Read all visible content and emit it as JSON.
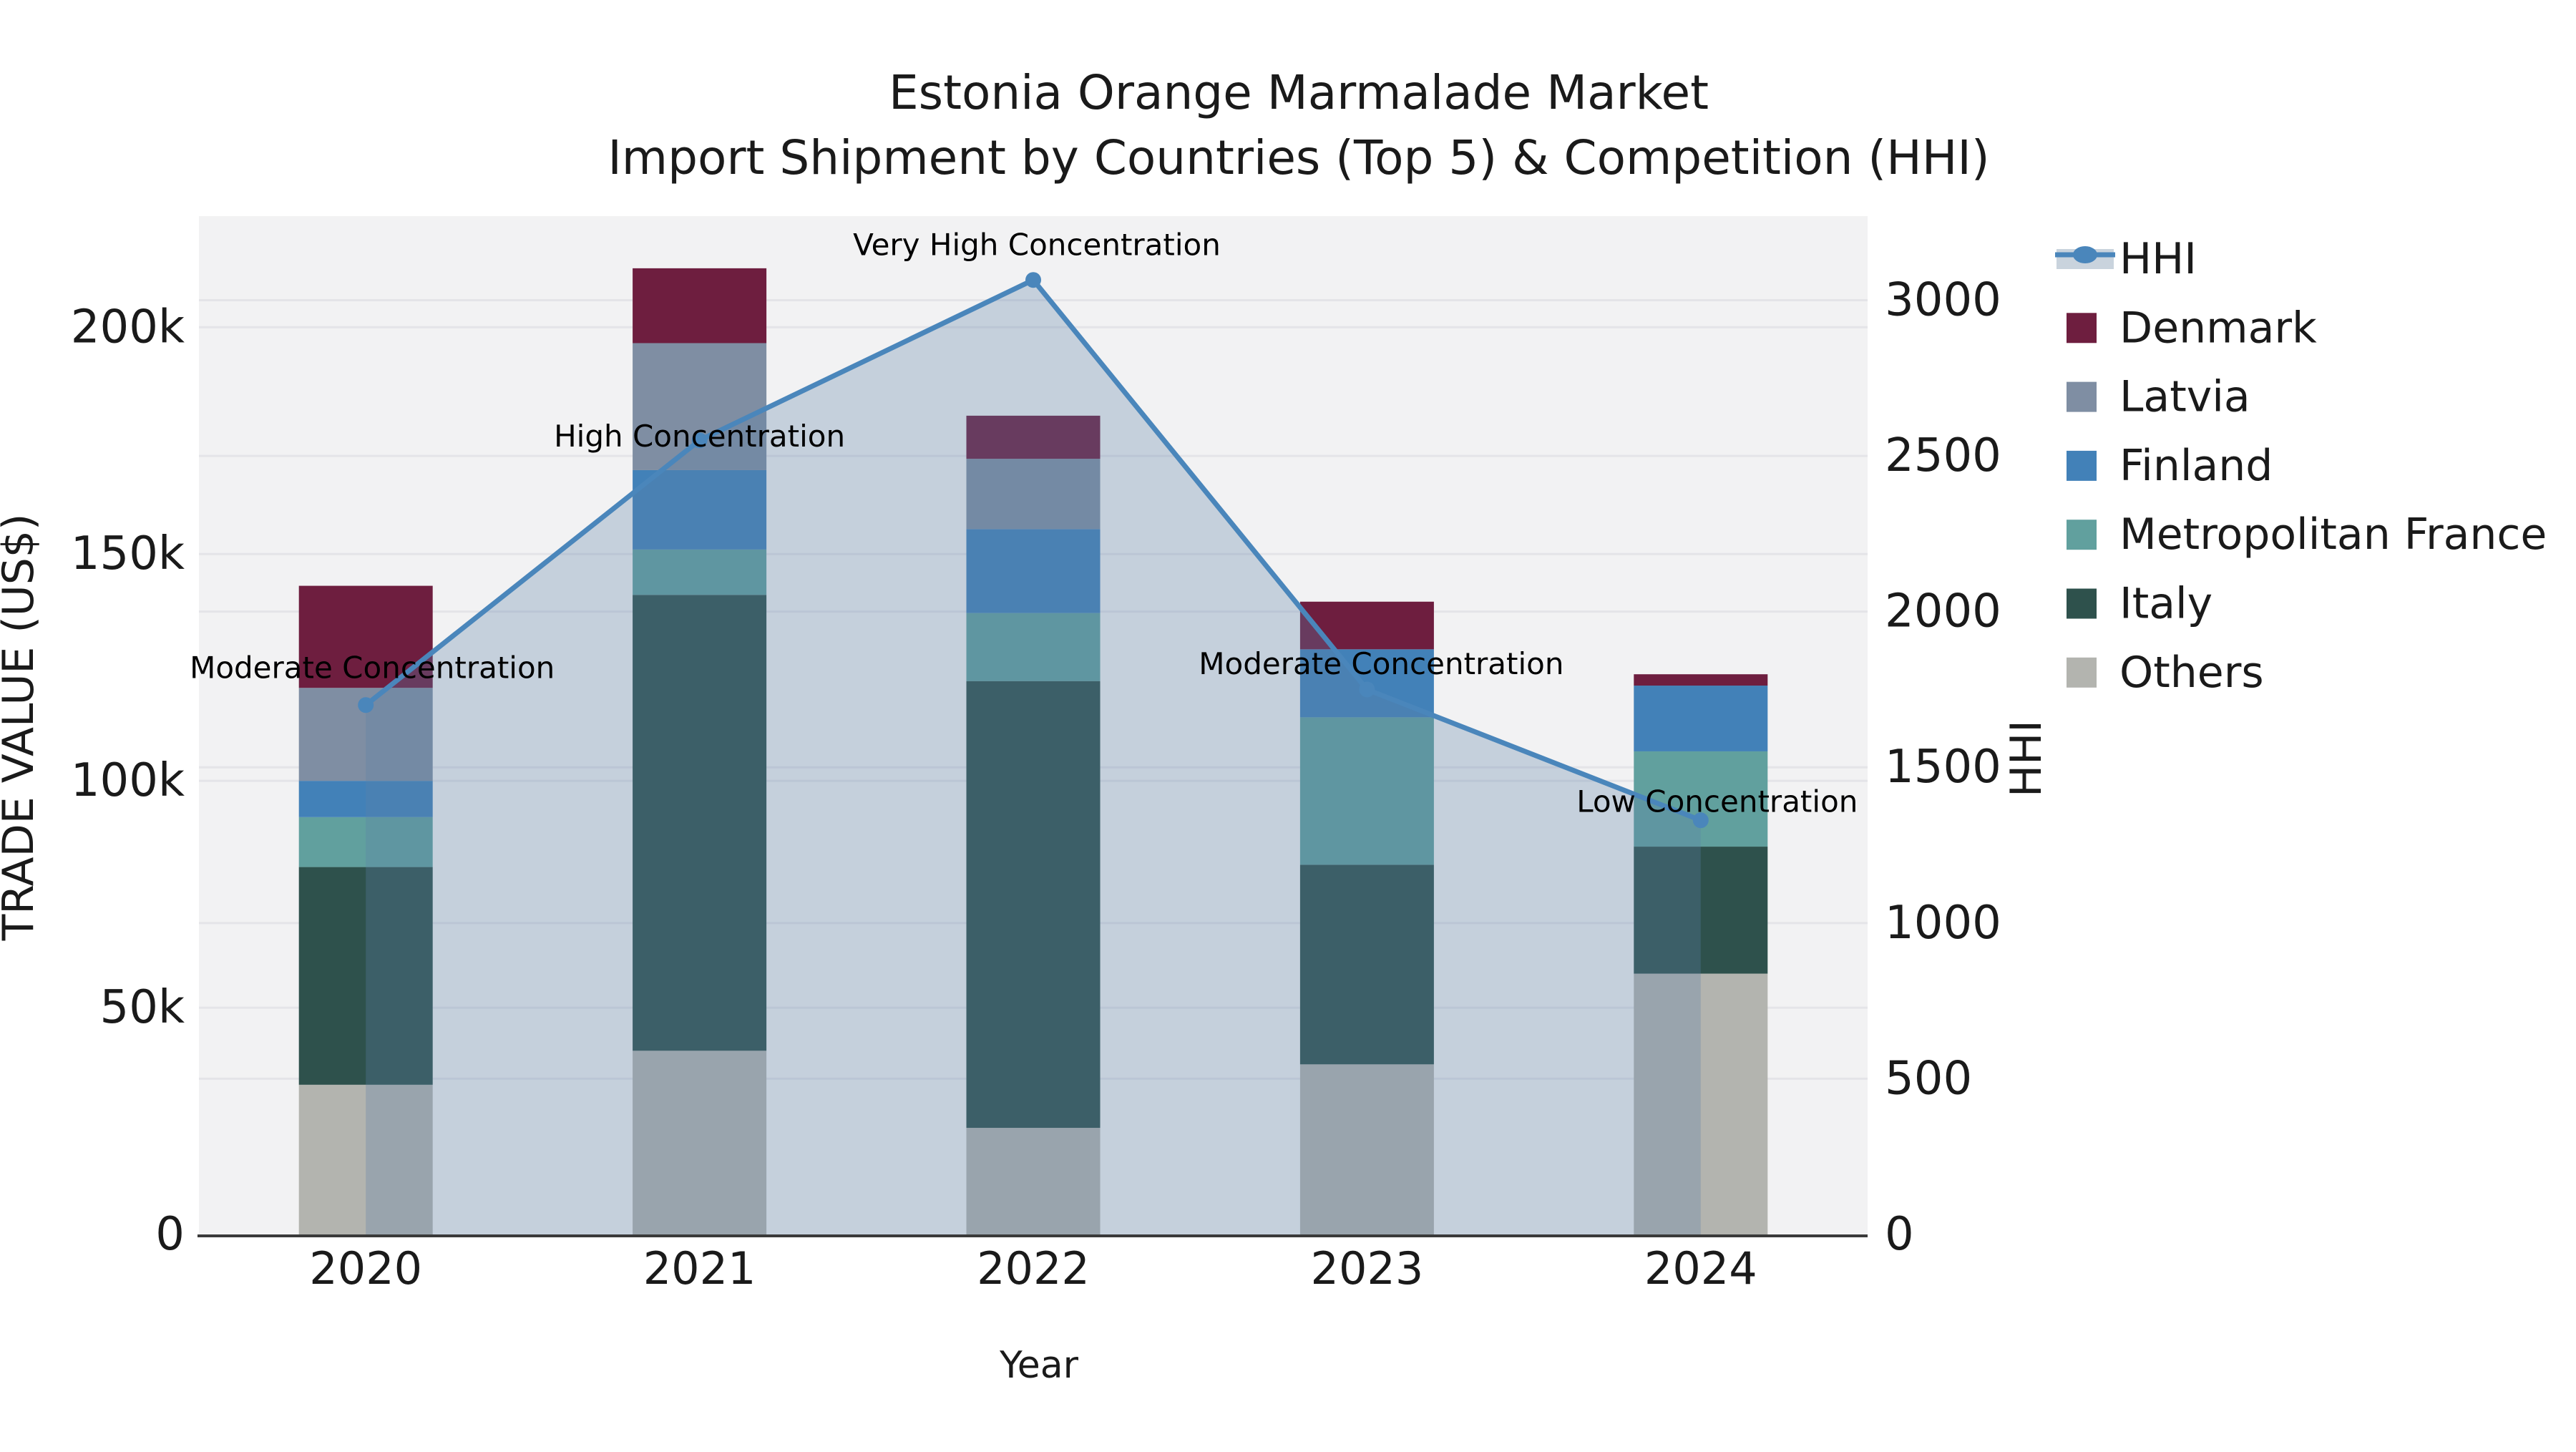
{
  "title": {
    "line1": "Estonia Orange Marmalade Market",
    "line2": "Import Shipment by Countries (Top 5) & Competition (HHI)"
  },
  "axes": {
    "x": {
      "label": "Year"
    },
    "left": {
      "label": "TRADE VALUE (US$)",
      "ticks": [
        "0",
        "50k",
        "100k",
        "150k",
        "200k"
      ],
      "tick_values": [
        0,
        50000,
        100000,
        150000,
        200000
      ],
      "max": 224500
    },
    "right": {
      "label": "HHI",
      "ticks": [
        "0",
        "500",
        "1000",
        "1500",
        "2000",
        "2500",
        "3000"
      ],
      "tick_values": [
        0,
        500,
        1000,
        1500,
        2000,
        2500,
        3000
      ],
      "max": 3270
    }
  },
  "legend": {
    "items": [
      {
        "label": "HHI",
        "type": "line",
        "color": "#4a86bb",
        "band": "#c9d3dd"
      },
      {
        "label": "Denmark",
        "type": "patch",
        "color": "#6e1e3f"
      },
      {
        "label": "Latvia",
        "type": "patch",
        "color": "#7f8ea3"
      },
      {
        "label": "Finland",
        "type": "patch",
        "color": "#4281b8"
      },
      {
        "label": "Metropolitan France",
        "type": "patch",
        "color": "#61a09e"
      },
      {
        "label": "Italy",
        "type": "patch",
        "color": "#2e514c"
      },
      {
        "label": "Others",
        "type": "patch",
        "color": "#b3b4af"
      }
    ]
  },
  "chart_data": {
    "type": "bar",
    "stacked": true,
    "title": "Estonia Orange Marmalade Market — Import Shipment by Countries (Top 5) & Competition (HHI)",
    "xlabel": "Year",
    "ylabel_left": "TRADE VALUE (US$)",
    "ylabel_right": "HHI",
    "categories": [
      "2020",
      "2021",
      "2022",
      "2023",
      "2024"
    ],
    "series": [
      {
        "name": "Others",
        "color": "#b3b4af",
        "values": [
          33000,
          40500,
          23500,
          37500,
          57500
        ]
      },
      {
        "name": "Italy",
        "color": "#2e514c",
        "values": [
          48000,
          100500,
          98500,
          44000,
          28000
        ]
      },
      {
        "name": "Metropolitan France",
        "color": "#61a09e",
        "values": [
          11000,
          10000,
          15000,
          32500,
          21000
        ]
      },
      {
        "name": "Finland",
        "color": "#4281b8",
        "values": [
          8000,
          17500,
          18500,
          15000,
          14500
        ]
      },
      {
        "name": "Latvia",
        "color": "#7f8ea3",
        "values": [
          20500,
          28000,
          15500,
          0,
          0
        ]
      },
      {
        "name": "Denmark",
        "color": "#6e1e3f",
        "values": [
          22500,
          16500,
          9500,
          10500,
          2500
        ]
      }
    ],
    "bar_totals": [
      143000,
      213000,
      180500,
      139500,
      123500
    ],
    "line": {
      "name": "HHI",
      "color": "#4a86bb",
      "area_fill": "#5d82a8",
      "values": [
        1700,
        2550,
        3065,
        1750,
        1330
      ]
    },
    "annotations": [
      {
        "label": "Moderate Concentration",
        "category": "2020"
      },
      {
        "label": "High Concentration",
        "category": "2021"
      },
      {
        "label": "Very High Concentration",
        "category": "2022"
      },
      {
        "label": "Moderate Concentration",
        "category": "2023"
      },
      {
        "label": "Low Concentration",
        "category": "2024"
      }
    ],
    "ylim_left": [
      0,
      224500
    ],
    "ylim_right": [
      0,
      3270
    ],
    "grid": true,
    "legend_position": "upper right, outside plot"
  },
  "colors": {
    "plot_bg": "#f2f2f3",
    "grid": "#e4e4e8",
    "axis_line": "#3a3a3a",
    "text": "#1a1a1a"
  }
}
